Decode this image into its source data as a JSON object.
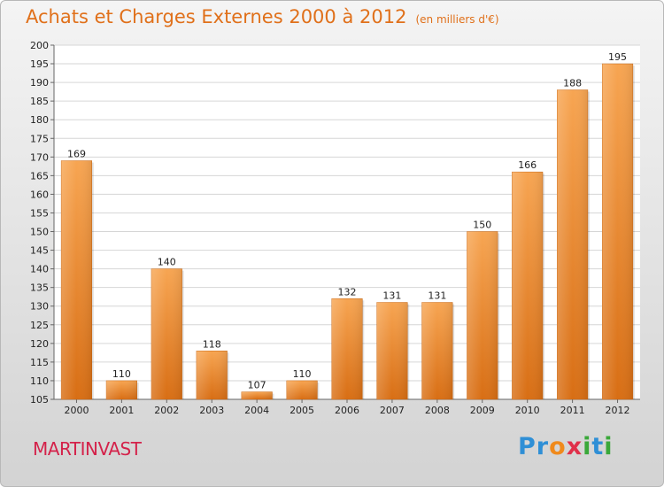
{
  "title": "Achats et Charges Externes 2000 à 2012",
  "unit": "(en milliers d'€)",
  "commune": "MARTINVAST",
  "logo": {
    "letters": [
      {
        "ch": "P",
        "color": "#2f8fd6"
      },
      {
        "ch": "r",
        "color": "#2f8fd6"
      },
      {
        "ch": "o",
        "color": "#f08a1c"
      },
      {
        "ch": "x",
        "color": "#e0304a"
      },
      {
        "ch": "i",
        "color": "#3aa83a"
      },
      {
        "ch": "t",
        "color": "#2f8fd6"
      },
      {
        "ch": "i",
        "color": "#3aa83a"
      }
    ]
  },
  "chart_data": {
    "type": "bar",
    "categories": [
      "2000",
      "2001",
      "2002",
      "2003",
      "2004",
      "2005",
      "2006",
      "2007",
      "2008",
      "2009",
      "2010",
      "2011",
      "2012"
    ],
    "values": [
      169,
      110,
      140,
      118,
      107,
      110,
      132,
      131,
      131,
      150,
      166,
      188,
      195
    ],
    "ylim": [
      105,
      200
    ],
    "yticks": [
      105,
      110,
      115,
      120,
      125,
      130,
      135,
      140,
      145,
      150,
      155,
      160,
      165,
      170,
      175,
      180,
      185,
      190,
      195,
      200
    ],
    "grid": true,
    "bar_color": "#f08a2c"
  }
}
